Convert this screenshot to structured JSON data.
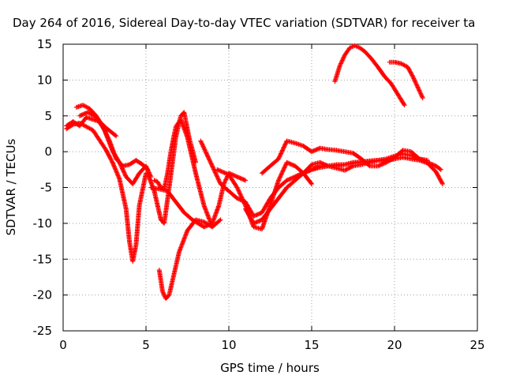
{
  "chart_data": {
    "type": "scatter",
    "title": "Day 264 of 2016, Sidereal Day-to-day VTEC variation (SDTVAR) for receiver ta",
    "xlabel": "GPS time / hours",
    "ylabel": "SDTVAR / TECUs",
    "xlim": [
      0,
      25
    ],
    "ylim": [
      -25,
      15
    ],
    "xticks": [
      0,
      5,
      10,
      15,
      20,
      25
    ],
    "yticks": [
      -25,
      -20,
      -15,
      -10,
      -5,
      0,
      5,
      10,
      15
    ],
    "grid": true,
    "marker": "plus",
    "color": "#ff0000",
    "series": [
      {
        "x": [
          0.2,
          0.6,
          1.0,
          1.4,
          1.8,
          2.2,
          2.6,
          3.0,
          3.4,
          3.8,
          4.0,
          4.2,
          4.4,
          4.6,
          5.0
        ],
        "y": [
          3.2,
          3.8,
          4.0,
          3.5,
          3.0,
          1.6,
          0.2,
          -1.6,
          -3.8,
          -8.0,
          -12.5,
          -15.3,
          -13.0,
          -7.5,
          -3.0
        ]
      },
      {
        "x": [
          0.2,
          0.6,
          1.0,
          1.4,
          1.8,
          2.2,
          2.6,
          3.2
        ],
        "y": [
          3.6,
          4.2,
          3.6,
          4.8,
          4.5,
          4.2,
          3.3,
          2.2
        ]
      },
      {
        "x": [
          0.8,
          1.2,
          1.6,
          2.0,
          2.4,
          2.8,
          3.2,
          3.6,
          4.0,
          4.4,
          4.8,
          5.1
        ],
        "y": [
          6.2,
          6.5,
          6.0,
          5.0,
          3.5,
          1.5,
          -1.0,
          -2.0,
          -1.8,
          -1.2,
          -1.8,
          -2.5
        ]
      },
      {
        "x": [
          1.0,
          1.5,
          2.0,
          2.5,
          3.0,
          3.4,
          3.8,
          4.2,
          4.6,
          5.0,
          5.3
        ],
        "y": [
          5.0,
          5.5,
          4.8,
          3.0,
          0.0,
          -1.5,
          -3.5,
          -4.5,
          -3.0,
          -2.0,
          -3.5
        ]
      },
      {
        "x": [
          5.1,
          5.5,
          5.9,
          6.1,
          6.4,
          6.8,
          7.1,
          7.3,
          7.6,
          8.0
        ],
        "y": [
          -3.0,
          -5.5,
          -9.5,
          -10.0,
          -5.0,
          2.0,
          5.0,
          5.5,
          2.0,
          -1.5
        ]
      },
      {
        "x": [
          5.8,
          6.0,
          6.2,
          6.4,
          6.7,
          7.0,
          7.5,
          8.0,
          8.5,
          9.0,
          9.5
        ],
        "y": [
          -16.5,
          -19.5,
          -20.5,
          -20.0,
          -17.0,
          -14.0,
          -11.0,
          -9.5,
          -9.8,
          -10.5,
          -9.5
        ]
      },
      {
        "x": [
          5.5,
          5.7,
          5.9,
          6.1,
          6.3,
          6.5,
          6.8,
          7.1,
          7.5,
          8.0,
          8.5,
          9.0
        ],
        "y": [
          -4.0,
          -4.2,
          -5.0,
          -5.2,
          -3.0,
          0.0,
          3.5,
          4.5,
          2.0,
          -3.0,
          -7.5,
          -10.5
        ]
      },
      {
        "x": [
          5.3,
          5.8,
          6.3,
          6.8,
          7.3,
          7.8,
          8.5,
          9.0,
          9.4,
          9.7,
          10.0,
          10.5,
          11.0
        ],
        "y": [
          -5.0,
          -5.2,
          -5.5,
          -7.0,
          -8.5,
          -9.5,
          -10.5,
          -10.0,
          -7.5,
          -4.5,
          -3.0,
          -3.5,
          -4.0
        ]
      },
      {
        "x": [
          8.3,
          8.6,
          9.0,
          9.5,
          10.0,
          10.5,
          11.0,
          11.5,
          12.0,
          12.5,
          13.0,
          13.5,
          14.0,
          14.5,
          15.0,
          15.5,
          16.0,
          16.5,
          17.0,
          17.5,
          18.0,
          18.5,
          19.0,
          19.5,
          20.0,
          20.5,
          21.0,
          21.5,
          22.0
        ],
        "y": [
          1.5,
          0.0,
          -2.0,
          -4.5,
          -5.5,
          -6.5,
          -7.0,
          -9.0,
          -8.5,
          -6.5,
          -5.0,
          -4.0,
          -3.5,
          -3.0,
          -2.5,
          -2.0,
          -2.0,
          -2.0,
          -1.8,
          -1.6,
          -1.5,
          -1.3,
          -1.2,
          -1.0,
          -0.6,
          -0.3,
          -0.5,
          -1.0,
          -1.2
        ]
      },
      {
        "x": [
          9.3,
          10.0,
          10.5,
          11.0,
          11.5,
          12.0,
          12.5,
          13.0,
          13.5,
          14.0,
          14.5,
          15.0
        ],
        "y": [
          -2.5,
          -3.2,
          -5.0,
          -7.5,
          -10.5,
          -10.8,
          -7.5,
          -4.0,
          -1.5,
          -2.0,
          -3.0,
          -4.5
        ]
      },
      {
        "x": [
          11.0,
          11.5,
          12.0,
          12.5,
          13.0,
          13.5,
          14.0,
          14.5,
          15.0,
          15.5,
          16.0,
          16.5,
          17.0,
          17.5,
          18.0,
          18.5,
          19.0,
          19.5,
          20.0
        ],
        "y": [
          -8.0,
          -10.0,
          -9.5,
          -8.0,
          -6.5,
          -5.0,
          -4.0,
          -3.0,
          -2.5,
          -2.2,
          -2.0,
          -2.3,
          -2.6,
          -2.0,
          -1.8,
          -1.5,
          -1.2,
          -1.3,
          -1.0
        ]
      },
      {
        "x": [
          12.0,
          12.5,
          13.0,
          13.5,
          14.0,
          14.5,
          15.0,
          15.5,
          16.0,
          16.5,
          17.0,
          17.5,
          18.0,
          18.5,
          19.0,
          19.5,
          20.0,
          20.5,
          21.0,
          21.5,
          22.0,
          22.5,
          22.8
        ],
        "y": [
          -3.0,
          -2.0,
          -1.0,
          1.5,
          1.2,
          0.8,
          0.0,
          0.5,
          0.3,
          0.2,
          0.0,
          -0.2,
          -1.0,
          -2.0,
          -2.0,
          -1.5,
          -0.8,
          0.2,
          0.0,
          -1.0,
          -1.5,
          -2.0,
          -2.5
        ]
      },
      {
        "x": [
          14.0,
          14.5,
          15.0,
          15.5,
          16.0,
          16.5,
          17.0,
          17.5,
          18.0,
          18.5,
          19.0,
          19.5,
          20.0,
          20.5,
          21.0,
          21.5,
          22.0,
          22.5,
          22.9
        ],
        "y": [
          -3.5,
          -3.0,
          -1.8,
          -1.5,
          -2.0,
          -1.8,
          -1.8,
          -1.5,
          -1.4,
          -1.3,
          -1.2,
          -1.2,
          -1.0,
          -0.8,
          -1.0,
          -1.2,
          -1.6,
          -2.8,
          -4.5
        ]
      },
      {
        "x": [
          16.4,
          16.7,
          17.0,
          17.3,
          17.6,
          17.9,
          18.2,
          18.6,
          19.0,
          19.4,
          19.8,
          20.2,
          20.6
        ],
        "y": [
          9.8,
          12.0,
          13.5,
          14.5,
          14.8,
          14.5,
          14.0,
          13.0,
          11.8,
          10.5,
          9.5,
          8.0,
          6.5
        ]
      },
      {
        "x": [
          19.7,
          20.0,
          20.4,
          20.8,
          21.1,
          21.4,
          21.7
        ],
        "y": [
          12.5,
          12.5,
          12.3,
          11.8,
          10.5,
          9.0,
          7.5
        ]
      }
    ]
  }
}
